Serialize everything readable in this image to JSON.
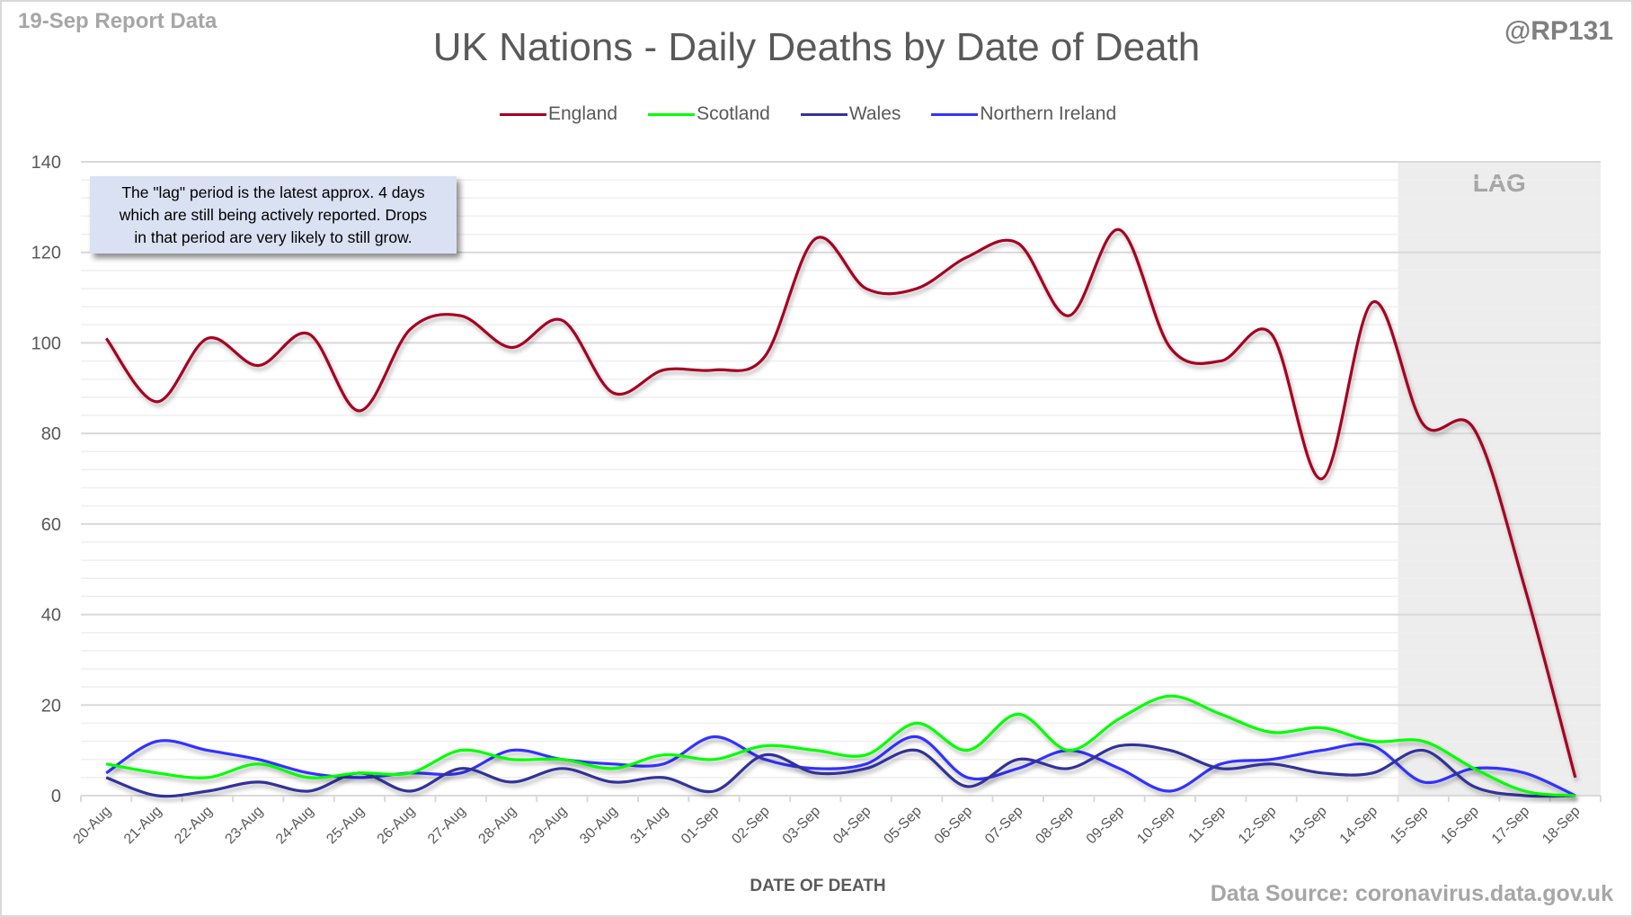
{
  "header": {
    "report_label": "19-Sep Report Data",
    "handle": "@RP131",
    "title": "UK Nations - Daily Deaths by Date of Death"
  },
  "footer": {
    "source": "Data Source: coronavirus.data.gov.uk"
  },
  "annotation": {
    "lines": [
      "The \"lag\" period is the latest approx. 4 days",
      "which are still being actively reported.  Drops",
      "in that period are very likely to still grow."
    ]
  },
  "chart_data": {
    "type": "line",
    "title": "UK Nations - Daily Deaths by Date of Death",
    "xlabel": "DATE OF DEATH",
    "ylabel": "",
    "ylim": [
      0,
      140
    ],
    "yticks": [
      0,
      20,
      40,
      60,
      80,
      100,
      120,
      140
    ],
    "y_minor_step": 4,
    "grid": true,
    "smoothed": true,
    "legend_position": "top-center",
    "categories": [
      "20-Aug",
      "21-Aug",
      "22-Aug",
      "23-Aug",
      "24-Aug",
      "25-Aug",
      "26-Aug",
      "27-Aug",
      "28-Aug",
      "29-Aug",
      "30-Aug",
      "31-Aug",
      "01-Sep",
      "02-Sep",
      "03-Sep",
      "04-Sep",
      "05-Sep",
      "06-Sep",
      "07-Sep",
      "08-Sep",
      "09-Sep",
      "10-Sep",
      "11-Sep",
      "12-Sep",
      "13-Sep",
      "14-Sep",
      "15-Sep",
      "16-Sep",
      "17-Sep",
      "18-Sep"
    ],
    "lag_region": {
      "label": "LAG",
      "start": "15-Sep",
      "end": "18-Sep"
    },
    "series": [
      {
        "name": "England",
        "color": "#a50021",
        "values": [
          101,
          87,
          101,
          95,
          102,
          85,
          103,
          106,
          99,
          105,
          89,
          94,
          94,
          97,
          123,
          112,
          112,
          119,
          122,
          106,
          125,
          99,
          96,
          102,
          70,
          109,
          82,
          81,
          46,
          4
        ]
      },
      {
        "name": "Scotland",
        "color": "#00ff00",
        "values": [
          7,
          5,
          4,
          7,
          4,
          5,
          5,
          10,
          8,
          8,
          6,
          9,
          8,
          11,
          10,
          9,
          16,
          10,
          18,
          10,
          17,
          22,
          18,
          14,
          15,
          12,
          12,
          6,
          1,
          0
        ]
      },
      {
        "name": "Wales",
        "color": "#333399",
        "values": [
          4,
          0,
          1,
          3,
          1,
          5,
          1,
          6,
          3,
          6,
          3,
          4,
          1,
          9,
          5,
          6,
          10,
          2,
          8,
          6,
          11,
          10,
          6,
          7,
          5,
          5,
          10,
          2,
          0,
          0
        ]
      },
      {
        "name": "Northern Ireland",
        "color": "#3333ff",
        "values": [
          5,
          12,
          10,
          8,
          5,
          4,
          5,
          5,
          10,
          8,
          7,
          7,
          13,
          8,
          6,
          7,
          13,
          4,
          6,
          10,
          6,
          1,
          7,
          8,
          10,
          11,
          3,
          6,
          5,
          0
        ]
      }
    ]
  }
}
